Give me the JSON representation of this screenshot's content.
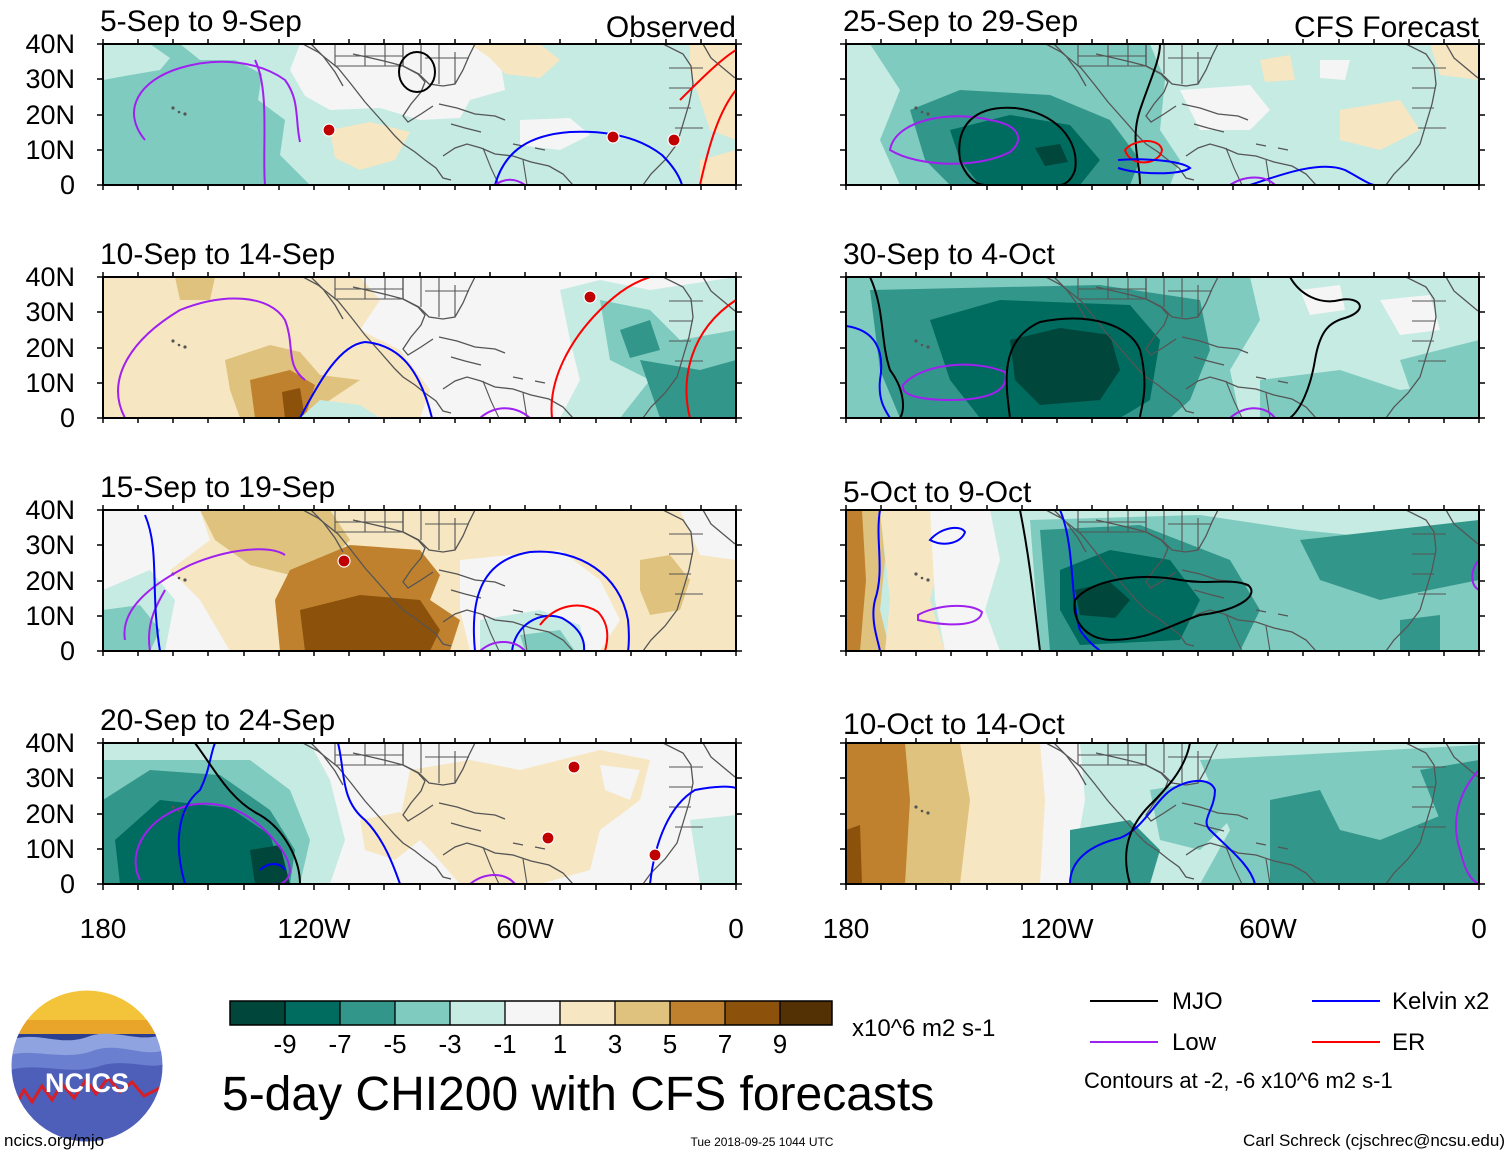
{
  "colors": {
    "neg9": "#00463a",
    "neg7": "#006b5f",
    "neg5": "#33968a",
    "neg3": "#7fcbbf",
    "neg1": "#c5ebe3",
    "zero": "#f5f5f5",
    "pos1": "#f6e6c2",
    "pos3": "#dfc27d",
    "pos5": "#bf812d",
    "pos7": "#8c510a",
    "pos9": "#543005",
    "mjo": "#000000",
    "low": "#a020f0",
    "kelvin": "#0000ff",
    "er": "#ff0000",
    "land": "#555555"
  },
  "headers": {
    "left": "Observed",
    "right": "CFS Forecast"
  },
  "panels": [
    {
      "title": "5-Sep to 9-Sep"
    },
    {
      "title": "10-Sep to 14-Sep"
    },
    {
      "title": "15-Sep to 19-Sep"
    },
    {
      "title": "20-Sep to 24-Sep"
    },
    {
      "title": "25-Sep to 29-Sep"
    },
    {
      "title": "30-Sep to 4-Oct"
    },
    {
      "title": "5-Oct to 9-Oct"
    },
    {
      "title": "10-Oct to 14-Oct"
    }
  ],
  "lat_labels": [
    "40N",
    "30N",
    "20N",
    "10N",
    "0"
  ],
  "lon_labels": [
    "180",
    "120W",
    "60W",
    "0"
  ],
  "colorbar": {
    "ticks": [
      "-9",
      "-7",
      "-5",
      "-3",
      "-1",
      "1",
      "3",
      "5",
      "7",
      "9"
    ],
    "units": "x10^6 m2 s-1"
  },
  "main_title": "5-day CHI200 with CFS forecasts",
  "logo_text": "NCICS",
  "legend": {
    "mjo": "MJO",
    "low": "Low",
    "kelvin": "Kelvin x2",
    "er": "ER",
    "note": "Contours at -2, -6 x10^6 m2 s-1"
  },
  "footer": {
    "left": "ncics.org/mjo",
    "center": "Tue 2018-09-25 1044 UTC",
    "right": "Carl Schreck (cjschrec@ncsu.edu)"
  }
}
